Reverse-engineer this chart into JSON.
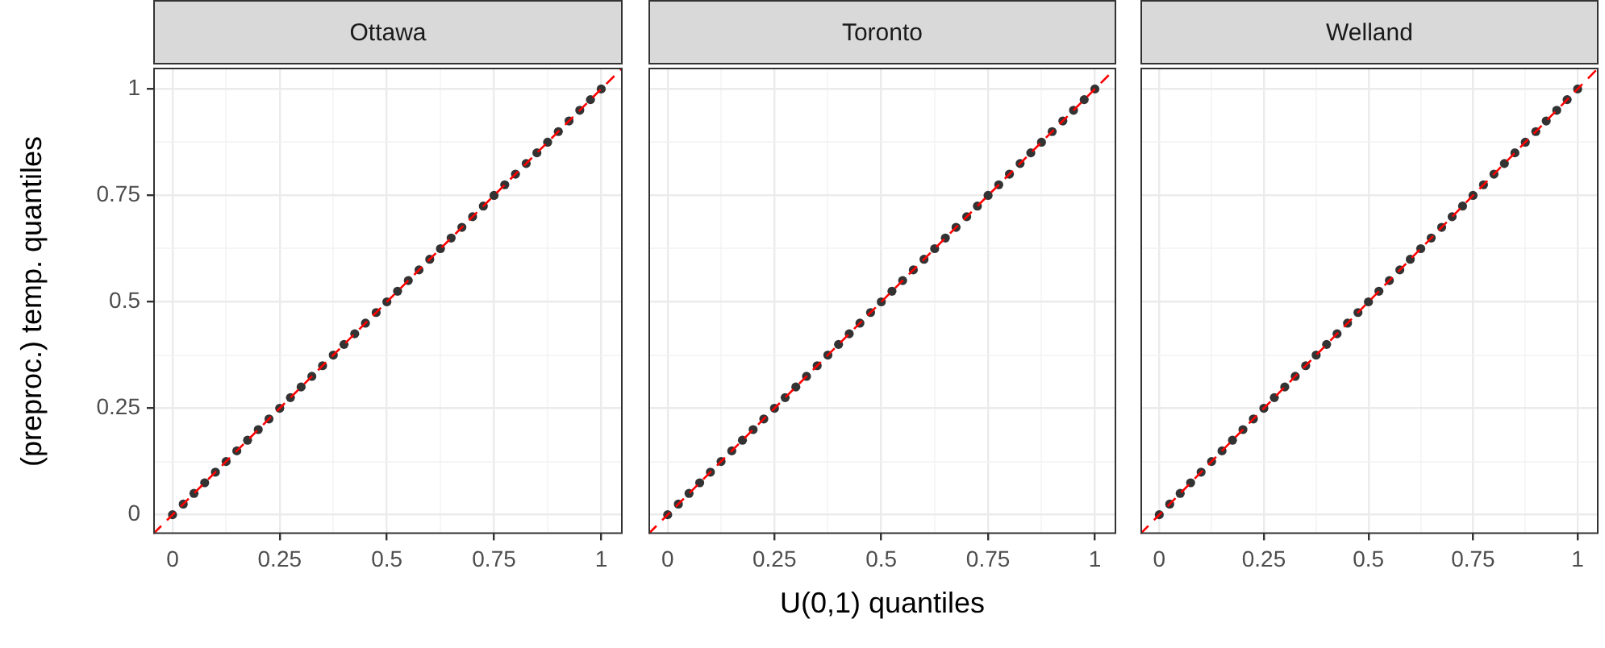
{
  "chart_data": [
    {
      "type": "scatter",
      "title": "Ottawa",
      "ylabel": "(preproc.) temp. quantiles",
      "xlim": [
        -0.045,
        1.05
      ],
      "ylim": [
        -0.045,
        1.05
      ],
      "xticks": [
        0,
        {
          "value": 0.125,
          "label": null
        },
        0.25,
        {
          "value": 0.375,
          "label": null
        },
        0.5,
        {
          "value": 0.625,
          "label": null
        },
        0.75,
        {
          "value": 0.875,
          "label": null
        },
        1
      ],
      "yticks": [
        0,
        {
          "value": 0.125,
          "label": null
        },
        0.25,
        {
          "value": 0.375,
          "label": null
        },
        0.5,
        {
          "value": 0.625,
          "label": null
        },
        0.75,
        {
          "value": 0.875,
          "label": null
        },
        1
      ],
      "grid": true,
      "series": [
        {
          "type": "scatter",
          "color": "#333333",
          "marker": "circle",
          "x": [
            0,
            0.025,
            0.05,
            0.075,
            0.1,
            0.125,
            0.15,
            0.175,
            0.2,
            0.225,
            0.25,
            0.275,
            0.3,
            0.325,
            0.35,
            0.375,
            0.4,
            0.425,
            0.45,
            0.475,
            0.5,
            0.525,
            0.55,
            0.575,
            0.6,
            0.625,
            0.65,
            0.675,
            0.7,
            0.725,
            0.75,
            0.775,
            0.8,
            0.825,
            0.85,
            0.875,
            0.9,
            0.925,
            0.95,
            0.975,
            1
          ],
          "values": [
            0,
            0.025,
            0.05,
            0.075,
            0.1,
            0.125,
            0.15,
            0.175,
            0.2,
            0.225,
            0.25,
            0.275,
            0.3,
            0.325,
            0.35,
            0.375,
            0.4,
            0.425,
            0.45,
            0.475,
            0.5,
            0.525,
            0.55,
            0.575,
            0.6,
            0.625,
            0.65,
            0.675,
            0.7,
            0.725,
            0.75,
            0.775,
            0.8,
            0.825,
            0.85,
            0.875,
            0.9,
            0.925,
            0.95,
            0.975,
            1
          ]
        },
        {
          "type": "line",
          "color": "#ff0000",
          "line_style": "dashed",
          "x": [
            -0.045,
            1.05
          ],
          "values": [
            -0.045,
            1.05
          ]
        }
      ]
    },
    {
      "type": "scatter",
      "title": "Toronto",
      "xlabel": "U(0,1) quantiles",
      "xlim": [
        -0.045,
        1.05
      ],
      "ylim": [
        -0.045,
        1.05
      ],
      "tick_labels": "x",
      "xticks": [
        0,
        {
          "value": 0.125,
          "label": null
        },
        0.25,
        {
          "value": 0.375,
          "label": null
        },
        0.5,
        {
          "value": 0.625,
          "label": null
        },
        0.75,
        {
          "value": 0.875,
          "label": null
        },
        1
      ],
      "yticks": [
        0,
        {
          "value": 0.125,
          "label": null
        },
        0.25,
        {
          "value": 0.375,
          "label": null
        },
        0.5,
        {
          "value": 0.625,
          "label": null
        },
        0.75,
        {
          "value": 0.875,
          "label": null
        },
        1
      ],
      "grid": true,
      "series": [
        {
          "type": "scatter",
          "color": "#333333",
          "marker": "circle",
          "x": [
            0,
            0.025,
            0.05,
            0.075,
            0.1,
            0.125,
            0.15,
            0.175,
            0.2,
            0.225,
            0.25,
            0.275,
            0.3,
            0.325,
            0.35,
            0.375,
            0.4,
            0.425,
            0.45,
            0.475,
            0.5,
            0.525,
            0.55,
            0.575,
            0.6,
            0.625,
            0.65,
            0.675,
            0.7,
            0.725,
            0.75,
            0.775,
            0.8,
            0.825,
            0.85,
            0.875,
            0.9,
            0.925,
            0.95,
            0.975,
            1
          ],
          "values": [
            0,
            0.025,
            0.05,
            0.075,
            0.1,
            0.125,
            0.15,
            0.175,
            0.2,
            0.225,
            0.25,
            0.275,
            0.3,
            0.325,
            0.35,
            0.375,
            0.4,
            0.425,
            0.45,
            0.475,
            0.5,
            0.525,
            0.55,
            0.575,
            0.6,
            0.625,
            0.65,
            0.675,
            0.7,
            0.725,
            0.75,
            0.775,
            0.8,
            0.825,
            0.85,
            0.875,
            0.9,
            0.925,
            0.95,
            0.975,
            1
          ]
        },
        {
          "type": "line",
          "color": "#ff0000",
          "line_style": "dashed",
          "x": [
            -0.045,
            1.05
          ],
          "values": [
            -0.045,
            1.05
          ]
        }
      ]
    },
    {
      "type": "scatter",
      "title": "Welland",
      "xlim": [
        -0.045,
        1.05
      ],
      "ylim": [
        -0.045,
        1.05
      ],
      "tick_labels": "x",
      "xticks": [
        0,
        {
          "value": 0.125,
          "label": null
        },
        0.25,
        {
          "value": 0.375,
          "label": null
        },
        0.5,
        {
          "value": 0.625,
          "label": null
        },
        0.75,
        {
          "value": 0.875,
          "label": null
        },
        1
      ],
      "yticks": [
        0,
        {
          "value": 0.125,
          "label": null
        },
        0.25,
        {
          "value": 0.375,
          "label": null
        },
        0.5,
        {
          "value": 0.625,
          "label": null
        },
        0.75,
        {
          "value": 0.875,
          "label": null
        },
        1
      ],
      "grid": true,
      "series": [
        {
          "type": "scatter",
          "color": "#333333",
          "marker": "circle",
          "x": [
            0,
            0.025,
            0.05,
            0.075,
            0.1,
            0.125,
            0.15,
            0.175,
            0.2,
            0.225,
            0.25,
            0.275,
            0.3,
            0.325,
            0.35,
            0.375,
            0.4,
            0.425,
            0.45,
            0.475,
            0.5,
            0.525,
            0.55,
            0.575,
            0.6,
            0.625,
            0.65,
            0.675,
            0.7,
            0.725,
            0.75,
            0.775,
            0.8,
            0.825,
            0.85,
            0.875,
            0.9,
            0.925,
            0.95,
            0.975,
            1
          ],
          "values": [
            0,
            0.025,
            0.05,
            0.075,
            0.1,
            0.125,
            0.15,
            0.175,
            0.2,
            0.225,
            0.25,
            0.275,
            0.3,
            0.325,
            0.35,
            0.375,
            0.4,
            0.425,
            0.45,
            0.475,
            0.5,
            0.525,
            0.55,
            0.575,
            0.6,
            0.625,
            0.65,
            0.675,
            0.7,
            0.725,
            0.75,
            0.775,
            0.8,
            0.825,
            0.85,
            0.875,
            0.9,
            0.925,
            0.95,
            0.975,
            1
          ]
        },
        {
          "type": "line",
          "color": "#ff0000",
          "line_style": "dashed",
          "x": [
            -0.045,
            1.05
          ],
          "values": [
            -0.045,
            1.05
          ]
        }
      ]
    }
  ]
}
